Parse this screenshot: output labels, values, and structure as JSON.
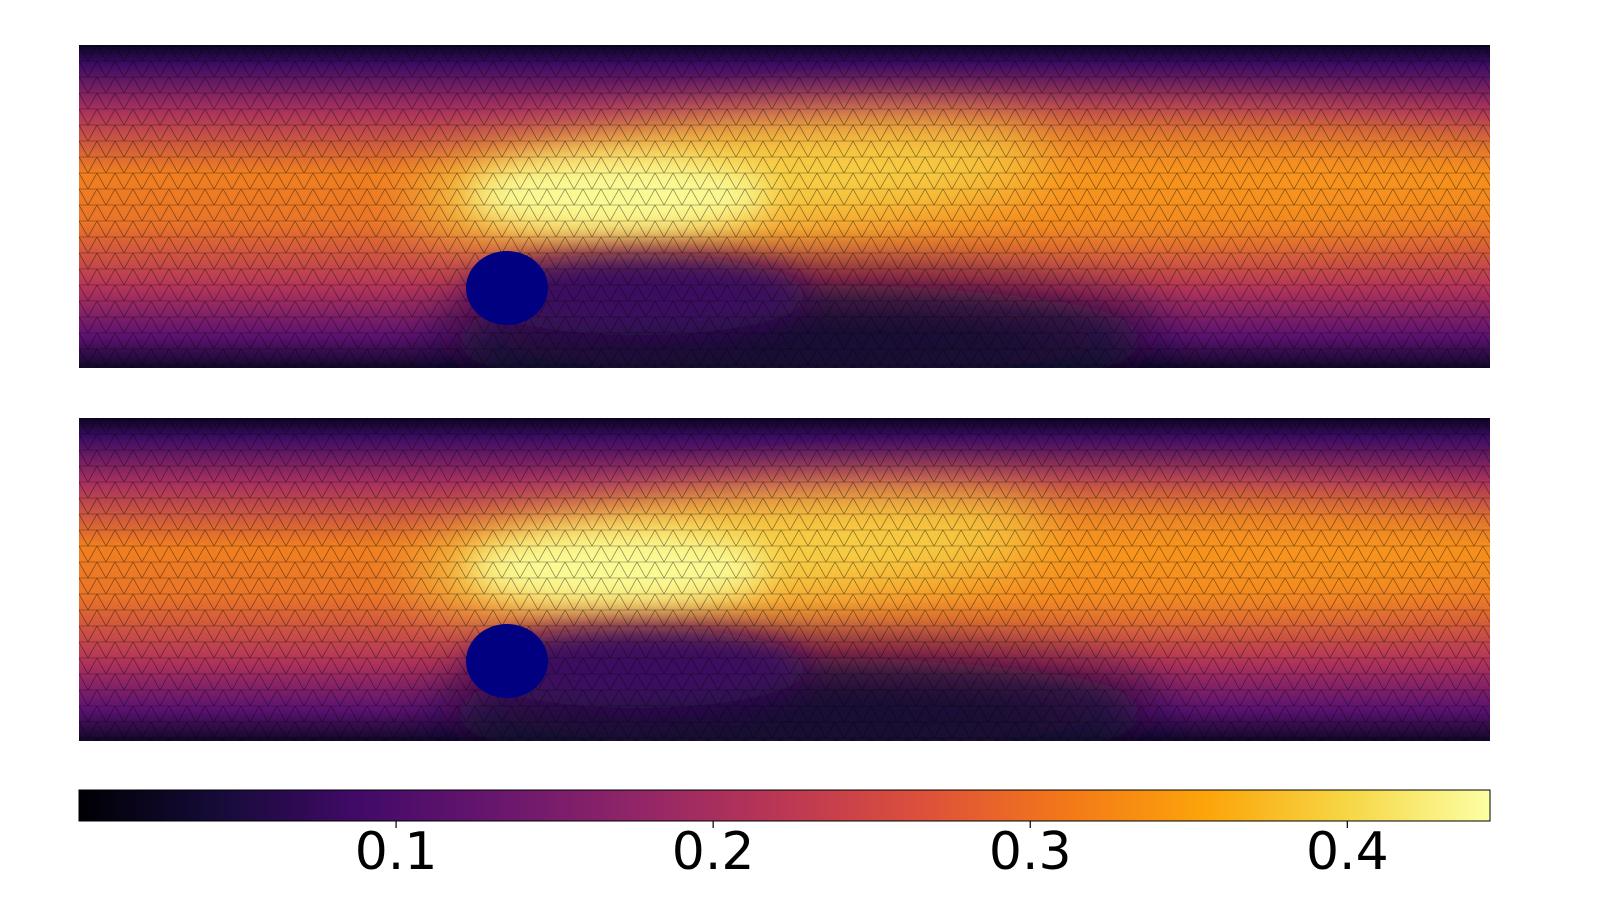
{
  "chart_data": {
    "type": "colorbar",
    "colormap": "inferno",
    "xlim": [
      0,
      0.445
    ],
    "xticks": [
      0.1,
      0.2,
      0.3,
      0.4
    ]
  }
}
